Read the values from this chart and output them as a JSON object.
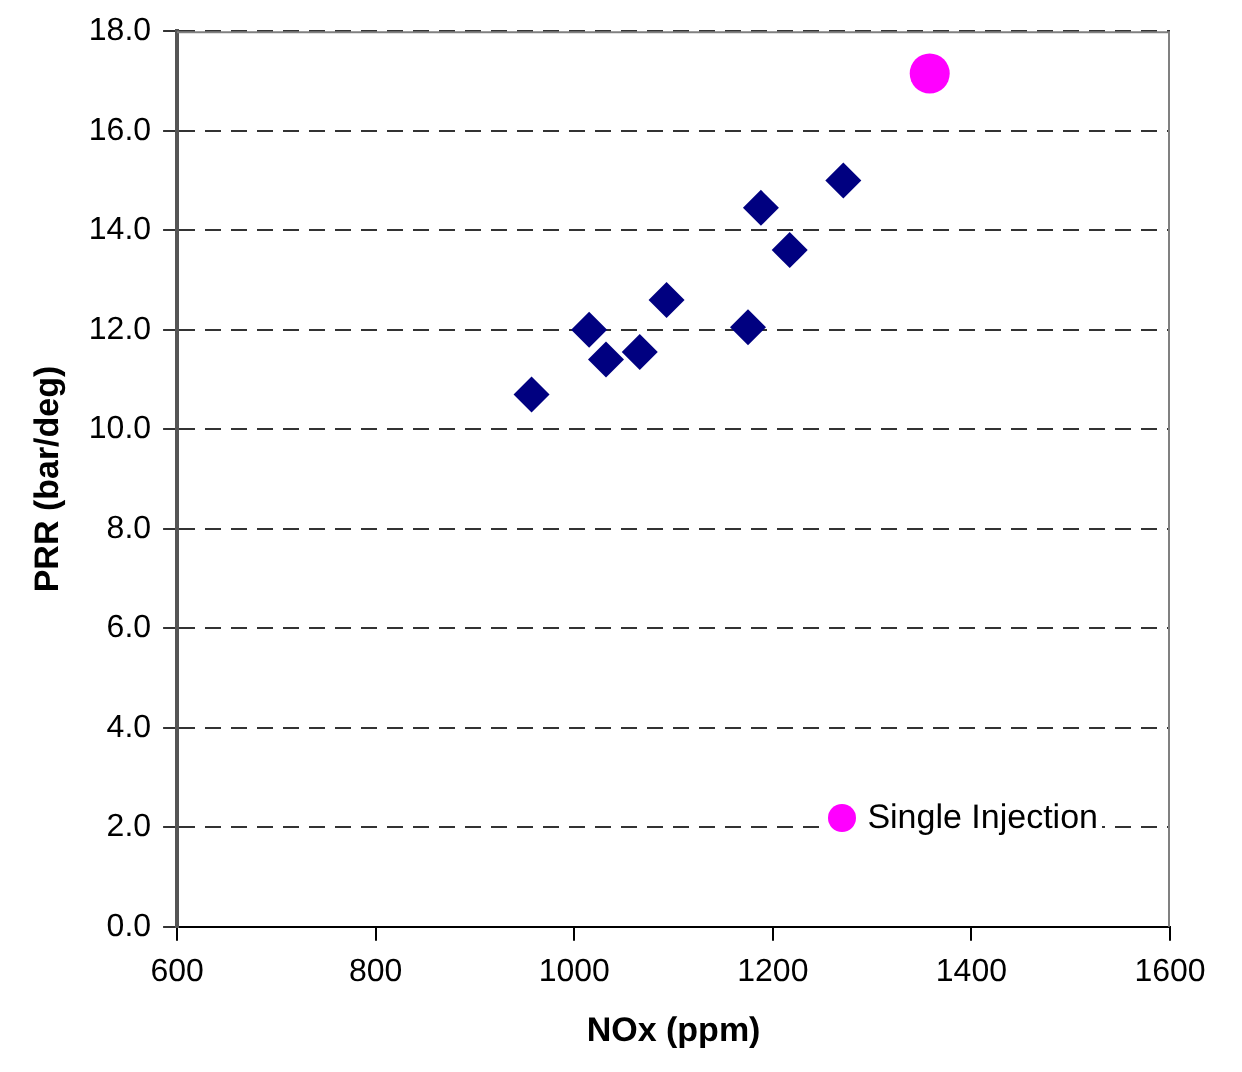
{
  "chart_data": {
    "type": "scatter",
    "xlabel": "NOx (ppm)",
    "ylabel": "PRR (bar/deg)",
    "xlim": [
      600,
      1600
    ],
    "xticks": [
      600,
      800,
      1000,
      1200,
      1400,
      1600
    ],
    "ylim": [
      0,
      18
    ],
    "yticks": [
      {
        "value": 0,
        "label": "0.0"
      },
      {
        "value": 2,
        "label": "2.0"
      },
      {
        "value": 4,
        "label": "4.0"
      },
      {
        "value": 6,
        "label": "6.0"
      },
      {
        "value": 8,
        "label": "8.0"
      },
      {
        "value": 10,
        "label": "10.0"
      },
      {
        "value": 12,
        "label": "12.0"
      },
      {
        "value": 14,
        "label": "14.0"
      },
      {
        "value": 16,
        "label": "16.0"
      },
      {
        "value": 18,
        "label": "18.0"
      }
    ],
    "grid": "y",
    "legend": "bottom right",
    "series": [
      {
        "color": "#000080",
        "marker": "diamond",
        "x": [
          957,
          1015,
          1032,
          1066,
          1093,
          1175,
          1188,
          1217,
          1271
        ],
        "values": [
          10.7,
          12.0,
          11.4,
          11.55,
          12.6,
          12.05,
          14.45,
          13.6,
          15.0
        ]
      },
      {
        "name": "Single Injection",
        "color": "#ff00ff",
        "marker": "circle",
        "x": [
          1358
        ],
        "values": [
          17.15
        ]
      }
    ]
  }
}
